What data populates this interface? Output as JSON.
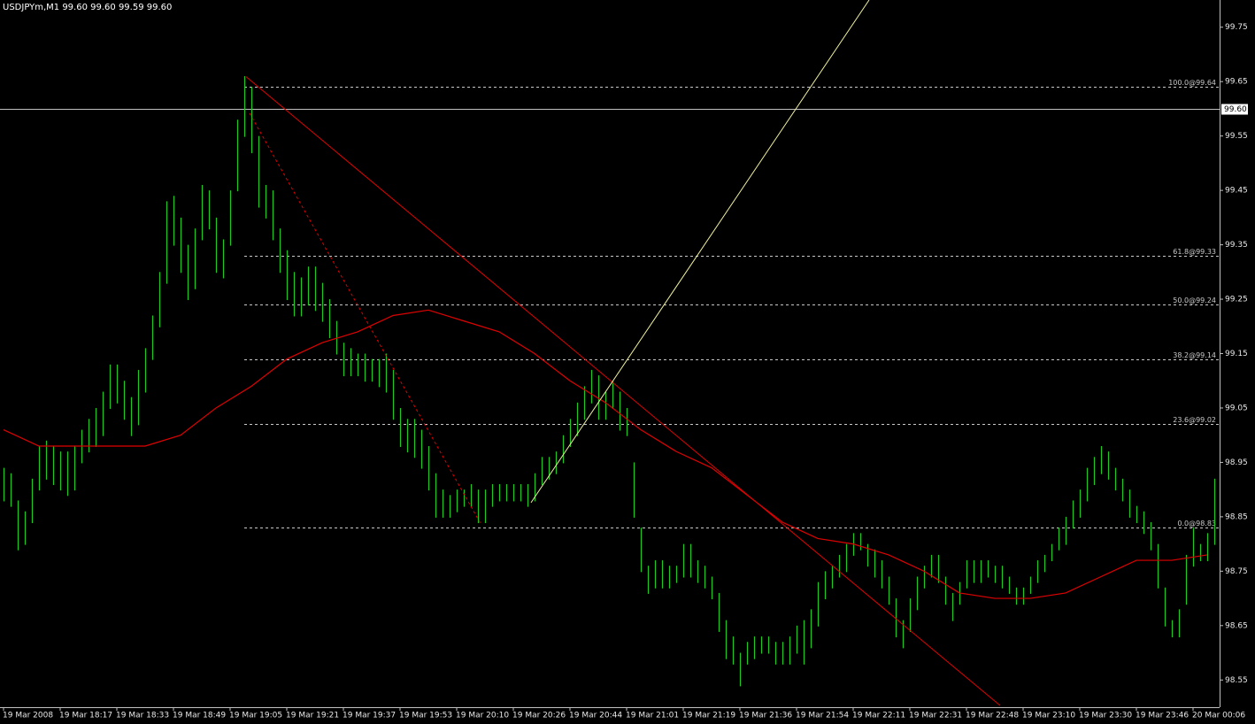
{
  "chart_data": {
    "type": "hl_bar",
    "title": "USDJPYm,M1  99.60 99.60 99.59 99.60",
    "categories": [
      "19 Mar 2008",
      null,
      null,
      null,
      null,
      null,
      null,
      null,
      "19 Mar 18:17",
      null,
      null,
      null,
      null,
      null,
      null,
      null,
      "19 Mar 18:33",
      null,
      null,
      null,
      null,
      null,
      null,
      null,
      "19 Mar 18:49",
      null,
      null,
      null,
      null,
      null,
      null,
      null,
      "19 Mar 19:05",
      null,
      null,
      null,
      null,
      null,
      null,
      null,
      "19 Mar 19:21",
      null,
      null,
      null,
      null,
      null,
      null,
      null,
      "19 Mar 19:37",
      null,
      null,
      null,
      null,
      null,
      null,
      null,
      "19 Mar 19:53",
      null,
      null,
      null,
      null,
      null,
      null,
      null,
      "19 Mar 20:10",
      null,
      null,
      null,
      null,
      null,
      null,
      null,
      "19 Mar 20:26",
      null,
      null,
      null,
      null,
      null,
      null,
      null,
      "19 Mar 20:44",
      null,
      null,
      null,
      null,
      null,
      null,
      null,
      "19 Mar 21:01",
      null,
      null,
      null,
      null,
      null,
      null,
      null,
      "19 Mar 21:19",
      null,
      null,
      null,
      null,
      null,
      null,
      null,
      "19 Mar 21:36",
      null,
      null,
      null,
      null,
      null,
      null,
      null,
      "19 Mar 21:54",
      null,
      null,
      null,
      null,
      null,
      null,
      null,
      "19 Mar 22:11",
      null,
      null,
      null,
      null,
      null,
      null,
      null,
      "19 Mar 22:31",
      null,
      null,
      null,
      null,
      null,
      null,
      null,
      "19 Mar 22:48",
      null,
      null,
      null,
      null,
      null,
      null,
      null,
      "19 Mar 23:10",
      null,
      null,
      null,
      null,
      null,
      null,
      null,
      "19 Mar 23:30",
      null,
      null,
      null,
      null,
      null,
      null,
      null,
      "19 Mar 23:46",
      null,
      null,
      null,
      null,
      null,
      null,
      null,
      "20 Mar 00:06",
      null,
      null,
      null
    ],
    "series": [
      {
        "color": "#22c822",
        "high": [
          98.94,
          98.93,
          98.88,
          98.86,
          98.92,
          98.98,
          98.99,
          98.98,
          98.97,
          98.97,
          98.98,
          99.01,
          99.03,
          99.05,
          99.08,
          99.13,
          99.13,
          99.1,
          99.07,
          99.12,
          99.16,
          99.22,
          99.3,
          99.43,
          99.44,
          99.4,
          99.35,
          99.38,
          99.46,
          99.45,
          99.4,
          99.36,
          99.45,
          99.58,
          99.66,
          99.64,
          99.55,
          99.46,
          99.45,
          99.38,
          99.34,
          99.3,
          99.29,
          99.31,
          99.31,
          99.28,
          99.25,
          99.21,
          99.17,
          99.16,
          99.15,
          99.15,
          99.14,
          99.14,
          99.15,
          99.12,
          99.05,
          99.03,
          99.03,
          99.01,
          98.98,
          98.93,
          98.9,
          98.89,
          98.9,
          98.9,
          98.91,
          98.9,
          98.9,
          98.91,
          98.91,
          98.91,
          98.91,
          98.91,
          98.91,
          98.93,
          98.96,
          98.96,
          98.97,
          99.0,
          99.03,
          99.06,
          99.09,
          99.12,
          99.11,
          99.08,
          99.1,
          99.08,
          99.05,
          98.95,
          98.83,
          98.76,
          98.77,
          98.77,
          98.76,
          98.76,
          98.8,
          98.8,
          98.77,
          98.76,
          98.74,
          98.71,
          98.66,
          98.63,
          98.6,
          98.62,
          98.63,
          98.63,
          98.63,
          98.62,
          98.62,
          98.63,
          98.65,
          98.66,
          98.68,
          98.73,
          98.75,
          98.76,
          98.78,
          98.8,
          98.82,
          98.82,
          98.8,
          98.79,
          98.77,
          98.74,
          98.7,
          98.66,
          98.7,
          98.74,
          98.76,
          98.78,
          98.78,
          98.74,
          98.71,
          98.73,
          98.77,
          98.77,
          98.77,
          98.77,
          98.76,
          98.76,
          98.74,
          98.72,
          98.72,
          98.74,
          98.77,
          98.78,
          98.8,
          98.83,
          98.85,
          98.88,
          98.9,
          98.94,
          98.96,
          98.98,
          98.97,
          98.94,
          98.92,
          98.9,
          98.87,
          98.86,
          98.84,
          98.8,
          98.72,
          98.66,
          98.68,
          98.78,
          98.83,
          98.8,
          98.82,
          98.92
        ],
        "low": [
          98.88,
          98.87,
          98.79,
          98.8,
          98.84,
          98.9,
          98.92,
          98.91,
          98.9,
          98.89,
          98.9,
          98.95,
          98.97,
          98.98,
          99.0,
          99.05,
          99.06,
          99.03,
          99.0,
          99.02,
          99.08,
          99.14,
          99.2,
          99.28,
          99.35,
          99.3,
          99.25,
          99.27,
          99.36,
          99.38,
          99.3,
          99.29,
          99.35,
          99.45,
          99.55,
          99.52,
          99.42,
          99.4,
          99.36,
          99.3,
          99.25,
          99.22,
          99.22,
          99.24,
          99.23,
          99.21,
          99.18,
          99.15,
          99.11,
          99.11,
          99.11,
          99.1,
          99.1,
          99.09,
          99.08,
          99.03,
          98.98,
          98.97,
          98.96,
          98.94,
          98.9,
          98.85,
          98.85,
          98.85,
          98.86,
          98.87,
          98.87,
          98.84,
          98.84,
          98.87,
          98.88,
          98.88,
          98.88,
          98.88,
          98.87,
          98.88,
          98.91,
          98.92,
          98.93,
          98.95,
          98.98,
          99.0,
          99.03,
          99.06,
          99.03,
          99.03,
          99.05,
          99.01,
          99.0,
          98.85,
          98.75,
          98.71,
          98.72,
          98.72,
          98.72,
          98.73,
          98.74,
          98.74,
          98.73,
          98.72,
          98.7,
          98.64,
          98.59,
          98.58,
          98.54,
          98.58,
          98.59,
          98.6,
          98.6,
          98.58,
          98.58,
          98.58,
          98.6,
          98.58,
          98.61,
          98.65,
          98.7,
          98.72,
          98.74,
          98.75,
          98.78,
          98.79,
          98.76,
          98.74,
          98.72,
          98.69,
          98.63,
          98.61,
          98.64,
          98.68,
          98.72,
          98.74,
          98.73,
          98.69,
          98.66,
          98.69,
          98.72,
          98.73,
          98.73,
          98.74,
          98.73,
          98.72,
          98.71,
          98.69,
          98.69,
          98.71,
          98.73,
          98.75,
          98.77,
          98.79,
          98.8,
          98.83,
          98.85,
          98.88,
          98.91,
          98.93,
          98.92,
          98.9,
          98.88,
          98.85,
          98.84,
          98.82,
          98.79,
          98.72,
          98.65,
          98.63,
          98.63,
          98.69,
          98.76,
          98.77,
          98.77,
          98.8
        ]
      }
    ],
    "moving_average": {
      "color": "#e00000",
      "x": [
        0,
        5,
        10,
        15,
        20,
        25,
        30,
        35,
        40,
        45,
        50,
        55,
        60,
        65,
        70,
        75,
        80,
        85,
        90,
        95,
        100,
        105,
        110,
        115,
        120,
        125,
        130,
        135,
        140,
        145,
        150,
        155,
        160,
        165,
        170
      ],
      "values": [
        99.01,
        98.98,
        98.98,
        98.98,
        98.98,
        99.0,
        99.05,
        99.09,
        99.14,
        99.17,
        99.19,
        99.22,
        99.23,
        99.21,
        99.19,
        99.15,
        99.1,
        99.06,
        99.01,
        98.97,
        98.94,
        98.89,
        98.84,
        98.81,
        98.8,
        98.78,
        98.75,
        98.71,
        98.7,
        98.7,
        98.71,
        98.74,
        98.77,
        98.77,
        98.78
      ]
    },
    "fibonacci": {
      "color": "#c8c8c8",
      "start_x": 34,
      "levels": [
        {
          "value": 99.64,
          "label": "100.0@99.64"
        },
        {
          "value": 99.33,
          "label": "61.8@99.33"
        },
        {
          "value": 99.24,
          "label": "50.0@99.24"
        },
        {
          "value": 99.14,
          "label": "38.2@99.14"
        },
        {
          "value": 99.02,
          "label": "23.6@99.02"
        },
        {
          "value": 98.83,
          "label": "0.0@98.83"
        }
      ]
    },
    "trendlines": [
      {
        "color": "#e00000",
        "dashed": false,
        "x": [
          34.25,
          140.75
        ],
        "y": [
          99.659,
          98.503
        ]
      },
      {
        "color": "#e00000",
        "dashed": true,
        "x": [
          34.75,
          67.4
        ],
        "y": [
          99.592,
          98.837
        ]
      },
      {
        "color": "#f0f0a0",
        "dashed": false,
        "x": [
          74.5,
          122.25
        ],
        "y": [
          98.876,
          99.8
        ]
      }
    ],
    "current_price": {
      "value": 99.6,
      "label": "99.60",
      "color": "#c0c0c0"
    },
    "xlim": [
      -0.5,
      171.75
    ],
    "ylim": [
      98.5,
      99.8
    ],
    "yticks": [
      98.55,
      98.65,
      98.75,
      98.85,
      98.95,
      99.05,
      99.15,
      99.25,
      99.35,
      99.45,
      99.55,
      99.65,
      99.75
    ]
  }
}
